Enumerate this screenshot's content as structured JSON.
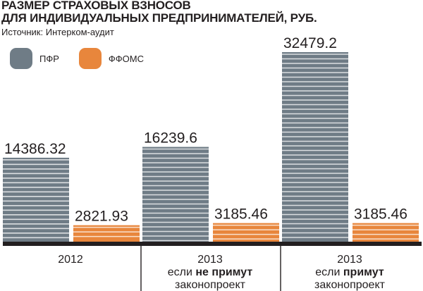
{
  "chart_data": {
    "type": "bar",
    "title_lines": [
      "РАЗМЕР СТРАХОВЫХ ВЗНОСОВ",
      "ДЛЯ ИНДИВИДУАЛЬНЫХ ПРЕДПРИНИМАТЕЛЕЙ, РУБ."
    ],
    "source": "Источник: Интерком-аудит",
    "categories": [
      {
        "parts": [
          {
            "lines": [
              [
                {
                  "text": "2012",
                  "bold": false
                }
              ]
            ]
          }
        ]
      },
      {
        "parts": [
          {
            "lines": [
              [
                {
                  "text": "2013",
                  "bold": false
                }
              ],
              [
                {
                  "text": "если ",
                  "bold": false
                },
                {
                  "text": "не примут",
                  "bold": true
                }
              ],
              [
                {
                  "text": "законопроект",
                  "bold": false
                }
              ]
            ]
          }
        ]
      },
      {
        "parts": [
          {
            "lines": [
              [
                {
                  "text": "2013",
                  "bold": false
                }
              ],
              [
                {
                  "text": "если ",
                  "bold": false
                },
                {
                  "text": "примут",
                  "bold": true
                }
              ],
              [
                {
                  "text": "законопроект",
                  "bold": false
                }
              ]
            ]
          }
        ]
      }
    ],
    "series": [
      {
        "name": "ПФР",
        "color": "#6f7c86",
        "values": [
          14386.32,
          16239.6,
          32479.2
        ],
        "labels": [
          "14386.32",
          "16239.6",
          "32479.2"
        ]
      },
      {
        "name": "ФФОМС",
        "color": "#e8863c",
        "values": [
          2821.93,
          3185.46,
          3185.46
        ],
        "labels": [
          "2821.93",
          "3185.46",
          "3185.46"
        ]
      }
    ],
    "ylim": [
      0,
      33000
    ],
    "grid": false,
    "legend_position": "top-left"
  }
}
